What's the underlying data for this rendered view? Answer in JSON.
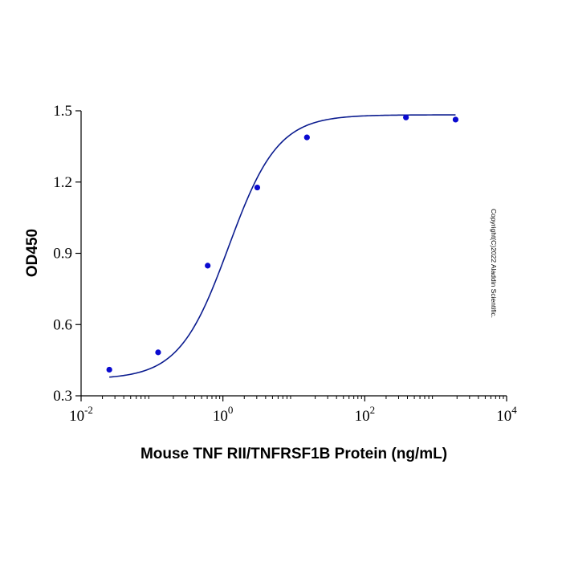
{
  "chart_data": {
    "type": "scatter",
    "title": "",
    "xlabel": "Mouse TNF RII/TNFRSF1B Protein (ng/mL)",
    "ylabel": "OD450",
    "x_scale": "log",
    "xlim": [
      0.01,
      10000
    ],
    "ylim": [
      0.3,
      1.5
    ],
    "x_ticks": [
      {
        "value": 0.01,
        "base": "10",
        "exp": "-2"
      },
      {
        "value": 1,
        "base": "10",
        "exp": "0"
      },
      {
        "value": 100,
        "base": "10",
        "exp": "2"
      },
      {
        "value": 10000,
        "base": "10",
        "exp": "4"
      }
    ],
    "y_ticks": [
      "0.3",
      "0.6",
      "0.9",
      "1.2",
      "1.5"
    ],
    "grid": false,
    "series": [
      {
        "points": [
          {
            "x": 0.025,
            "y": 0.41
          },
          {
            "x": 0.122,
            "y": 0.483
          },
          {
            "x": 0.61,
            "y": 0.848
          },
          {
            "x": 3.05,
            "y": 1.177
          },
          {
            "x": 15.3,
            "y": 1.388
          },
          {
            "x": 381,
            "y": 1.472
          },
          {
            "x": 1907,
            "y": 1.463
          }
        ],
        "fit": {
          "model": "4PL",
          "bottom": 0.37,
          "top": 1.483,
          "ec50": 1.2,
          "hill": 1.25,
          "x_range": [
            0.025,
            1907
          ]
        },
        "color": "#0a0ad0",
        "line_color": "#0b1c8f"
      }
    ],
    "annotation": "Copyright(C)2022 Aladdin Scientific."
  }
}
